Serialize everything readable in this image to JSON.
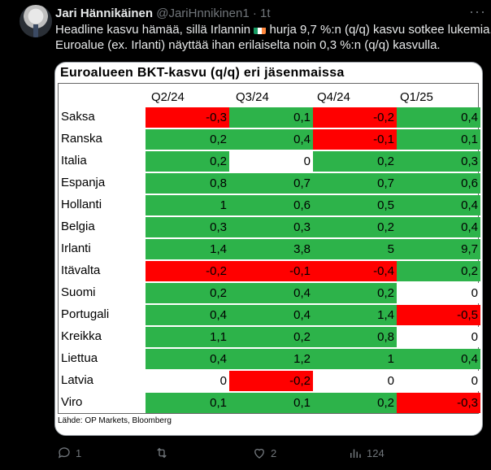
{
  "tweet": {
    "author_name": "Jari Hännikäinen",
    "handle": "@JariHnnikinen1",
    "separator": "·",
    "time": "1t",
    "more_label": "···",
    "text_line1_before_flag": "Headline kasvu hämää, sillä Irlannin ",
    "text_line1_after_flag": " hurja 9,7 %:n (q/q) kasvu sotkee lukemia...",
    "text_line2": "Euroalue (ex. Irlanti) näyttää ihan erilaiselta noin 0,3 %:n (q/q) kasvulla.",
    "flag_colors": [
      "#169b62",
      "#ffffff",
      "#ff883e"
    ]
  },
  "chart": {
    "title": "Euroalueen BKT-kasvu (q/q) eri jäsenmaissa",
    "source": "Lähde: OP Markets, Bloomberg",
    "colors": {
      "red": "#ff0000",
      "green": "#2db34a",
      "white": "#ffffff"
    }
  },
  "chart_data": {
    "type": "table",
    "columns": [
      "Q2/24",
      "Q3/24",
      "Q4/24",
      "Q1/25"
    ],
    "rows": [
      {
        "label": "Saksa",
        "values": [
          "-0,3",
          "0,1",
          "-0,2",
          "0,4"
        ],
        "colors": [
          "red",
          "green",
          "red",
          "green"
        ]
      },
      {
        "label": "Ranska",
        "values": [
          "0,2",
          "0,4",
          "-0,1",
          "0,1"
        ],
        "colors": [
          "green",
          "green",
          "red",
          "green"
        ]
      },
      {
        "label": "Italia",
        "values": [
          "0,2",
          "0",
          "0,2",
          "0,3"
        ],
        "colors": [
          "green",
          "white",
          "green",
          "green"
        ]
      },
      {
        "label": "Espanja",
        "values": [
          "0,8",
          "0,7",
          "0,7",
          "0,6"
        ],
        "colors": [
          "green",
          "green",
          "green",
          "green"
        ]
      },
      {
        "label": "Hollanti",
        "values": [
          "1",
          "0,6",
          "0,5",
          "0,4"
        ],
        "colors": [
          "green",
          "green",
          "green",
          "green"
        ]
      },
      {
        "label": "Belgia",
        "values": [
          "0,3",
          "0,3",
          "0,2",
          "0,4"
        ],
        "colors": [
          "green",
          "green",
          "green",
          "green"
        ]
      },
      {
        "label": "Irlanti",
        "values": [
          "1,4",
          "3,8",
          "5",
          "9,7"
        ],
        "colors": [
          "green",
          "green",
          "green",
          "green"
        ]
      },
      {
        "label": "Itävalta",
        "values": [
          "-0,2",
          "-0,1",
          "-0,4",
          "0,2"
        ],
        "colors": [
          "red",
          "red",
          "red",
          "green"
        ]
      },
      {
        "label": "Suomi",
        "values": [
          "0,2",
          "0,4",
          "0,2",
          "0"
        ],
        "colors": [
          "green",
          "green",
          "green",
          "white"
        ]
      },
      {
        "label": "Portugali",
        "values": [
          "0,4",
          "0,4",
          "1,4",
          "-0,5"
        ],
        "colors": [
          "green",
          "green",
          "green",
          "red"
        ]
      },
      {
        "label": "Kreikka",
        "values": [
          "1,1",
          "0,2",
          "0,8",
          "0"
        ],
        "colors": [
          "green",
          "green",
          "green",
          "white"
        ]
      },
      {
        "label": "Liettua",
        "values": [
          "0,4",
          "1,2",
          "1",
          "0,4"
        ],
        "colors": [
          "green",
          "green",
          "green",
          "green"
        ]
      },
      {
        "label": "Latvia",
        "values": [
          "0",
          "-0,2",
          "0",
          "0"
        ],
        "colors": [
          "white",
          "red",
          "white",
          "white"
        ]
      },
      {
        "label": "Viro",
        "values": [
          "0,1",
          "0,1",
          "0,2",
          "-0,3"
        ],
        "colors": [
          "green",
          "green",
          "green",
          "red"
        ]
      }
    ]
  },
  "actions": {
    "reply_count": "1",
    "repost_count": "",
    "like_count": "2",
    "views_count": "124",
    "icons": [
      "reply-icon",
      "repost-icon",
      "like-icon",
      "views-icon"
    ]
  }
}
